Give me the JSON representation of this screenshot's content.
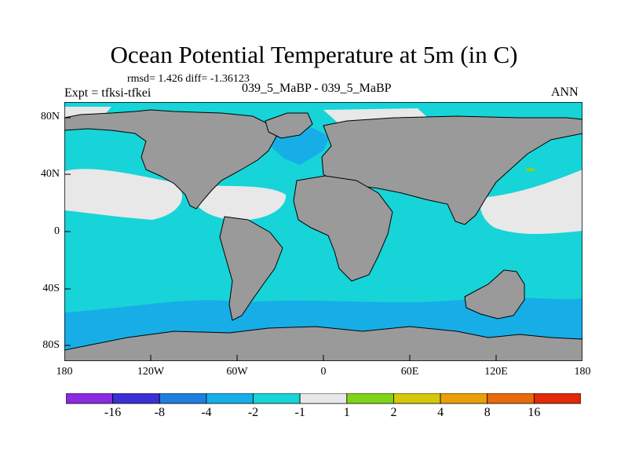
{
  "title": "Ocean Potential Temperature at 5m (in C)",
  "stats": "rmsd= 1.426 diff= -1.36123",
  "expt": "Expt = tfksi-tfkei",
  "case_id": "039_5_MaBP - 039_5_MaBP",
  "season": "ANN",
  "lat_labels": [
    "80N",
    "40N",
    "0",
    "40S",
    "80S"
  ],
  "lon_labels": [
    "180",
    "120W",
    "60W",
    "0",
    "60E",
    "120E",
    "180"
  ],
  "colorbar": {
    "colors": [
      "#8a2be2",
      "#3b2fd6",
      "#1f7fe0",
      "#17aee8",
      "#17d4d8",
      "#e8e8e8",
      "#7fd41a",
      "#d4c80a",
      "#e8a00a",
      "#e86a0a",
      "#e02a0a"
    ],
    "labels": [
      "-16",
      "-8",
      "-4",
      "-2",
      "-1",
      "1",
      "2",
      "4",
      "8",
      "16"
    ]
  },
  "map_colors": {
    "land": "#9a9a9a",
    "ocean_base": "#17d4d8",
    "near_zero": "#e8e8e8",
    "cold": "#17aee8",
    "warm_spot": "#7fd41a"
  }
}
